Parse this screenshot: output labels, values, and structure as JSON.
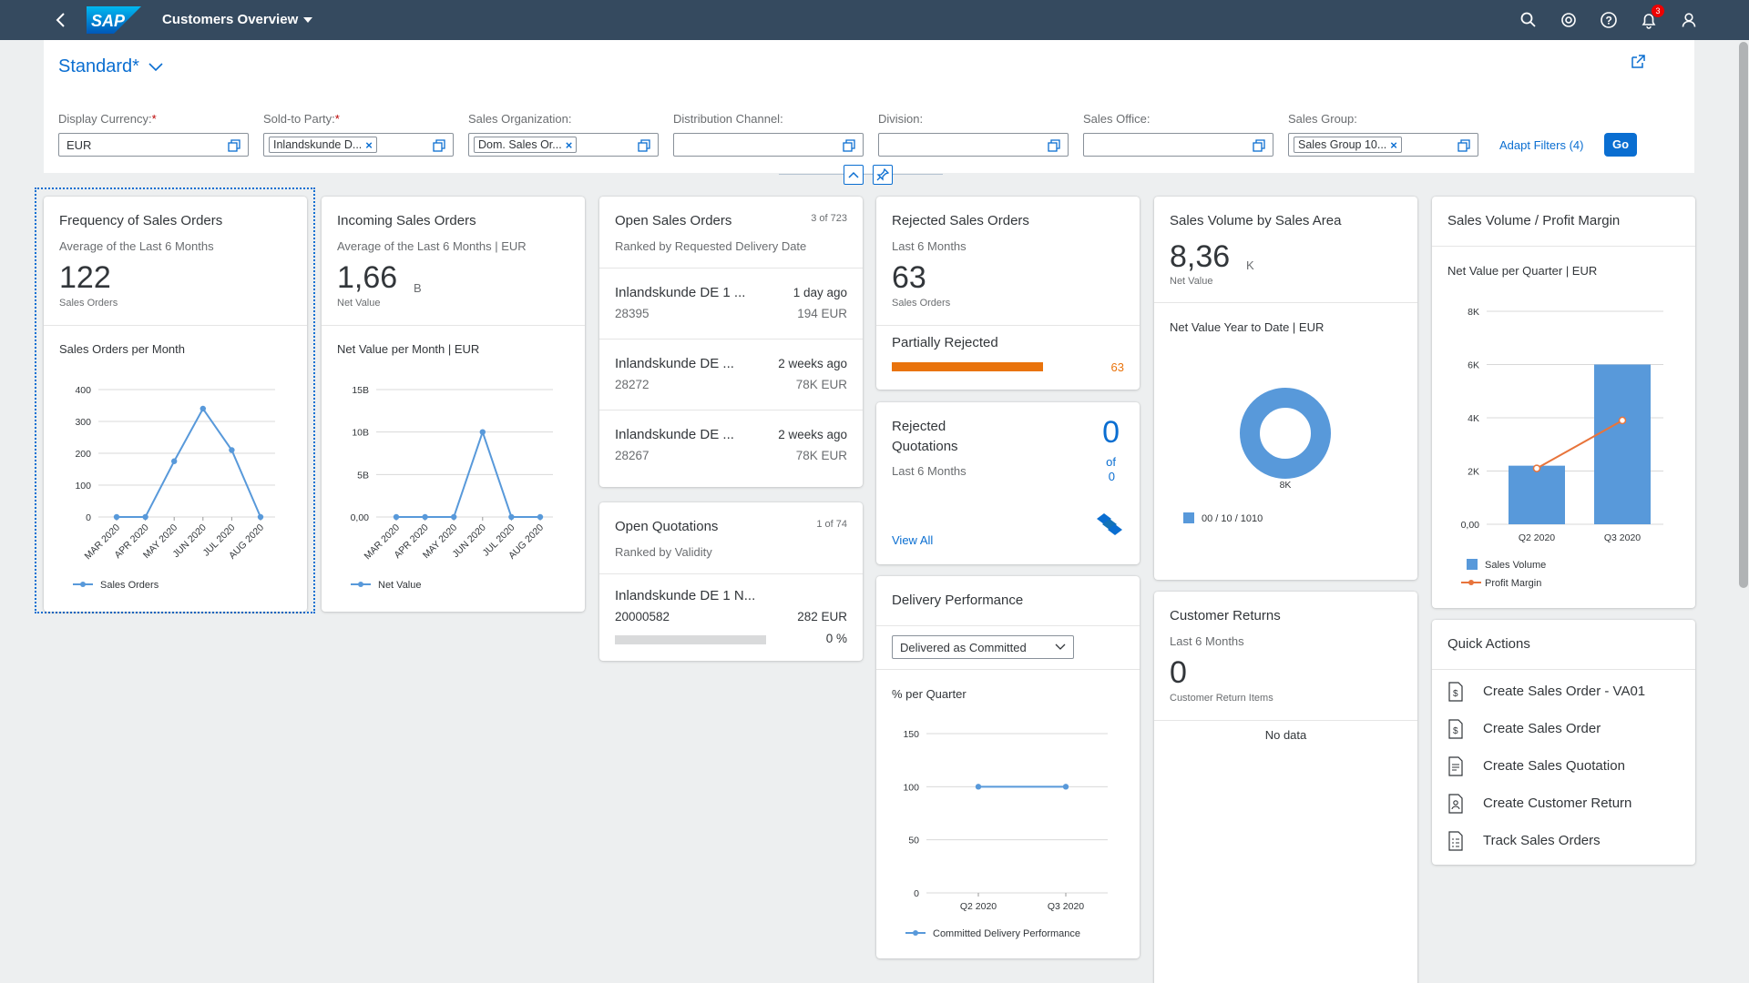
{
  "shell": {
    "title": "Customers Overview",
    "logo_text": "SAP",
    "notification_count": "3"
  },
  "header": {
    "variant": "Standard*",
    "filters": [
      {
        "label": "Display Currency:",
        "required": "*",
        "value": "EUR"
      },
      {
        "label": "Sold-to Party:",
        "required": "*",
        "token": "Inlandskunde D..."
      },
      {
        "label": "Sales Organization:",
        "token": "Dom. Sales Or..."
      },
      {
        "label": "Distribution Channel:"
      },
      {
        "label": "Division:"
      },
      {
        "label": "Sales Office:"
      },
      {
        "label": "Sales Group:",
        "token": "Sales Group 10..."
      }
    ],
    "adapt_filters": "Adapt Filters (4)",
    "go": "Go"
  },
  "cards": {
    "freq": {
      "title": "Frequency of Sales Orders",
      "subtitle": "Average of the Last 6 Months",
      "kpi": "122",
      "kpi_label": "Sales Orders",
      "chart_title": "Sales Orders per Month"
    },
    "incoming": {
      "title": "Incoming Sales Orders",
      "subtitle": "Average of the Last 6 Months | EUR",
      "kpi": "1,66",
      "kpi_unit": "B",
      "kpi_label": "Net Value",
      "chart_title": "Net Value per Month | EUR"
    },
    "open_so": {
      "title": "Open Sales Orders",
      "count": "3 of 723",
      "subtitle": "Ranked by Requested Delivery Date",
      "items": [
        {
          "name": "Inlandskunde DE 1 ...",
          "id": "28395",
          "when": "1 day ago",
          "amount": "194 EUR"
        },
        {
          "name": "Inlandskunde DE ...",
          "id": "28272",
          "when": "2 weeks ago",
          "amount": "78K EUR"
        },
        {
          "name": "Inlandskunde DE ...",
          "id": "28267",
          "when": "2 weeks ago",
          "amount": "78K EUR"
        }
      ]
    },
    "open_quot": {
      "title": "Open Quotations",
      "count": "1 of 74",
      "subtitle": "Ranked by Validity",
      "item": {
        "name": "Inlandskunde DE 1 N...",
        "id": "20000582",
        "amount": "282 EUR",
        "percent": "0 %",
        "progress": 0
      }
    },
    "rejected_so": {
      "title": "Rejected Sales Orders",
      "subtitle": "Last 6 Months",
      "kpi": "63",
      "kpi_label": "Sales Orders",
      "bar_label": "Partially Rejected",
      "bar_value": "63",
      "bar_color": "#e9730c"
    },
    "rejected_quot": {
      "title_line1": "Rejected",
      "title_line2": "Quotations",
      "subtitle": "Last 6 Months",
      "value": "0",
      "of": "of",
      "total": "0",
      "link": "View All"
    },
    "delivery": {
      "title": "Delivery Performance",
      "select": "Delivered as Committed",
      "chart_title": "% per Quarter"
    },
    "sales_area": {
      "title": "Sales Volume by Sales Area",
      "kpi": "8,36",
      "kpi_unit": "K",
      "kpi_label": "Net Value",
      "chart_title": "Net Value Year to Date | EUR"
    },
    "returns": {
      "title": "Customer Returns",
      "subtitle": "Last 6 Months",
      "kpi": "0",
      "kpi_label": "Customer Return Items",
      "nodata": "No data"
    },
    "profit": {
      "title": "Sales Volume / Profit Margin",
      "chart_title": "Net Value per Quarter | EUR"
    },
    "quick": {
      "title": "Quick Actions",
      "actions": [
        "Create Sales Order - VA01",
        "Create Sales Order",
        "Create Sales Quotation",
        "Create Customer Return",
        "Track Sales Orders"
      ]
    }
  },
  "chart_data": [
    {
      "type": "line",
      "title": "Sales Orders per Month",
      "categories": [
        "MAR 2020",
        "APR 2020",
        "MAY 2020",
        "JUN 2020",
        "JUL 2020",
        "AUG 2020"
      ],
      "series": [
        {
          "name": "Sales Orders",
          "values": [
            0,
            0,
            175,
            340,
            210,
            0
          ]
        }
      ],
      "yticks": [
        "0",
        "100",
        "200",
        "300",
        "400"
      ],
      "ylim": [
        0,
        400
      ],
      "color": "#5899da"
    },
    {
      "type": "line",
      "title": "Net Value per Month | EUR",
      "categories": [
        "MAR 2020",
        "APR 2020",
        "MAY 2020",
        "JUN 2020",
        "JUL 2020",
        "AUG 2020"
      ],
      "series": [
        {
          "name": "Net Value",
          "values": [
            0,
            0,
            0,
            10,
            0,
            0
          ]
        }
      ],
      "yticks": [
        "0,00",
        "5B",
        "10B",
        "15B"
      ],
      "ylim": [
        0,
        15
      ],
      "color": "#5899da"
    },
    {
      "type": "line",
      "title": "% per Quarter",
      "categories": [
        "Q2 2020",
        "Q3 2020"
      ],
      "series": [
        {
          "name": "Committed Delivery Performance",
          "values": [
            100,
            100
          ]
        }
      ],
      "yticks": [
        "0",
        "50",
        "100",
        "150"
      ],
      "ylim": [
        0,
        150
      ],
      "color": "#5899da"
    },
    {
      "type": "pie",
      "title": "Net Value Year to Date | EUR",
      "categories": [
        "00 / 10 / 1010"
      ],
      "values": [
        8360
      ],
      "data_label": "8K",
      "color": "#5899da"
    },
    {
      "type": "bar",
      "title": "Net Value per Quarter | EUR",
      "categories": [
        "Q2 2020",
        "Q3 2020"
      ],
      "series": [
        {
          "name": "Sales Volume",
          "values": [
            2200,
            6000
          ],
          "color": "#5899da"
        },
        {
          "name": "Profit Margin",
          "values": [
            2100,
            3900
          ],
          "color": "#e8743b"
        }
      ],
      "yticks": [
        "0,00",
        "2K",
        "4K",
        "6K",
        "8K"
      ],
      "ylim": [
        0,
        8000
      ]
    }
  ]
}
